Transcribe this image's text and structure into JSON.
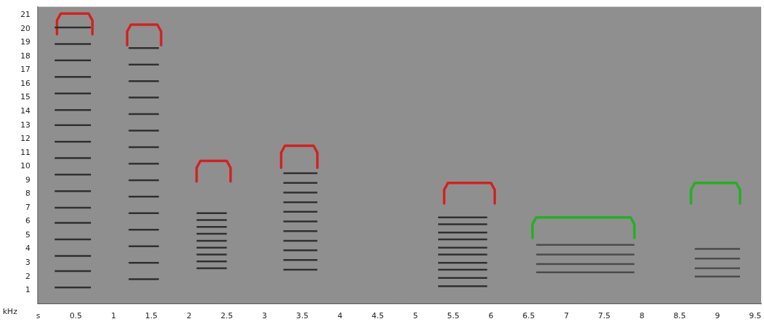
{
  "chart_data": {
    "type": "line",
    "y_label": "kHz",
    "grid": false,
    "xlim": [
      0,
      9.58
    ],
    "xticks": [
      {
        "value": 0,
        "label": "s"
      },
      0.5,
      1,
      1.5,
      2,
      2.5,
      3,
      3.5,
      4,
      4.5,
      5,
      5.5,
      6,
      6.5,
      7,
      7.5,
      8,
      8.5,
      9,
      9.5
    ],
    "ylim": [
      0,
      21.6
    ],
    "yticks": [
      1,
      2,
      3,
      4,
      5,
      6,
      7,
      8,
      9,
      10,
      11,
      12,
      13,
      14,
      15,
      16,
      17,
      18,
      19,
      20,
      21
    ],
    "calls": [
      {
        "color": "#2e2e2e",
        "start": 0.22,
        "end": 0.7,
        "values": [
          1.2,
          2.4,
          3.5,
          4.7,
          5.9,
          7.0,
          8.2,
          9.4,
          10.6,
          11.8,
          13.0,
          14.1,
          15.3,
          16.5,
          17.7,
          18.9,
          20.1
        ]
      },
      {
        "color": "#2e2e2e",
        "start": 1.2,
        "end": 1.6,
        "values": [
          1.8,
          3.0,
          4.2,
          5.4,
          6.6,
          7.8,
          9.0,
          10.2,
          11.4,
          12.6,
          13.8,
          15.0,
          16.2,
          17.4,
          18.6
        ]
      },
      {
        "color": "#2e2e2e",
        "start": 2.1,
        "end": 2.5,
        "values": [
          2.6,
          3.1,
          3.6,
          4.1,
          4.6,
          5.1,
          5.6,
          6.1,
          6.6
        ]
      },
      {
        "color": "#2e2e2e",
        "start": 3.25,
        "end": 3.7,
        "values": [
          2.5,
          3.2,
          3.9,
          4.6,
          5.3,
          6.0,
          6.7,
          7.4,
          8.1,
          8.8,
          9.5
        ]
      },
      {
        "color": "#2e2e2e",
        "start": 5.3,
        "end": 5.95,
        "values": [
          1.3,
          1.9,
          2.5,
          3.0,
          3.6,
          4.1,
          4.7,
          5.2,
          5.8,
          6.3
        ]
      },
      {
        "color": "#4a4a4a",
        "start": 6.6,
        "end": 7.9,
        "values": [
          2.3,
          2.9,
          3.6,
          4.3
        ]
      },
      {
        "color": "#4a4a4a",
        "start": 8.7,
        "end": 9.3,
        "values": [
          2.0,
          2.6,
          3.3,
          4.0
        ]
      }
    ],
    "series": [
      {
        "color": "#d42020",
        "x": [
          0.25,
          0.25,
          0.3,
          0.67,
          0.72,
          0.72
        ],
        "values": [
          19.6,
          20.6,
          21.1,
          21.1,
          20.6,
          19.6
        ]
      },
      {
        "color": "#d42020",
        "x": [
          1.18,
          1.18,
          1.23,
          1.58,
          1.63,
          1.63
        ],
        "values": [
          18.8,
          19.8,
          20.3,
          20.3,
          19.8,
          18.8
        ]
      },
      {
        "color": "#d42020",
        "x": [
          2.1,
          2.1,
          2.15,
          2.5,
          2.55,
          2.55
        ],
        "values": [
          8.9,
          9.9,
          10.4,
          10.4,
          9.9,
          8.9
        ]
      },
      {
        "color": "#d42020",
        "x": [
          3.22,
          3.22,
          3.27,
          3.65,
          3.7,
          3.7
        ],
        "values": [
          9.9,
          11.0,
          11.5,
          11.5,
          11.0,
          9.9
        ]
      },
      {
        "color": "#d42020",
        "x": [
          5.38,
          5.38,
          5.43,
          6.0,
          6.05,
          6.05
        ],
        "values": [
          7.3,
          8.3,
          8.8,
          8.8,
          8.3,
          7.3
        ]
      },
      {
        "color": "#22b022",
        "x": [
          6.55,
          6.55,
          6.6,
          7.85,
          7.9,
          7.9
        ],
        "values": [
          4.8,
          5.8,
          6.3,
          6.3,
          5.8,
          4.8
        ]
      },
      {
        "color": "#22b022",
        "x": [
          8.65,
          8.65,
          8.7,
          9.25,
          9.3,
          9.3
        ],
        "values": [
          7.3,
          8.3,
          8.8,
          8.8,
          8.3,
          7.3
        ]
      }
    ]
  }
}
